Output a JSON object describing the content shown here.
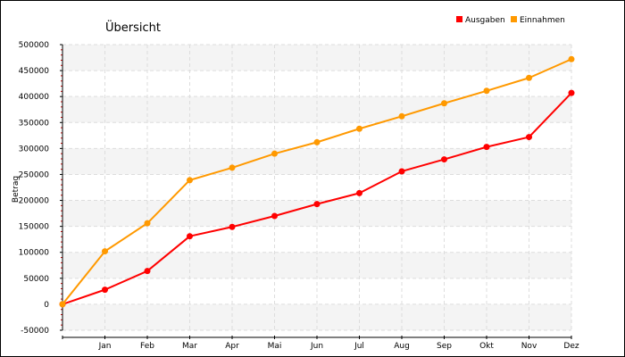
{
  "chart_data": {
    "type": "line",
    "title": "Übersicht",
    "xlabel": "",
    "ylabel": "Betrag",
    "categories": [
      "",
      "Jan",
      "Feb",
      "Mar",
      "Apr",
      "Mai",
      "Jun",
      "Jul",
      "Aug",
      "Sep",
      "Okt",
      "Nov",
      "Dez"
    ],
    "ylim": [
      -50000,
      500000
    ],
    "yticks": [
      "-50000",
      "0",
      "50000",
      "100000",
      "150000",
      "200000",
      "250000",
      "300000",
      "350000",
      "400000",
      "450000",
      "500000"
    ],
    "series": [
      {
        "name": "Ausgaben",
        "color": "#ff0000",
        "values": [
          0,
          28000,
          64000,
          131000,
          149000,
          170000,
          193000,
          214000,
          256000,
          279000,
          303000,
          322000,
          407000
        ]
      },
      {
        "name": "Einnahmen",
        "color": "#ff9900",
        "values": [
          0,
          102000,
          156000,
          239000,
          263000,
          290000,
          312000,
          338000,
          362000,
          387000,
          411000,
          436000,
          472000
        ]
      }
    ],
    "grid": true,
    "legend_position": "top-right"
  }
}
